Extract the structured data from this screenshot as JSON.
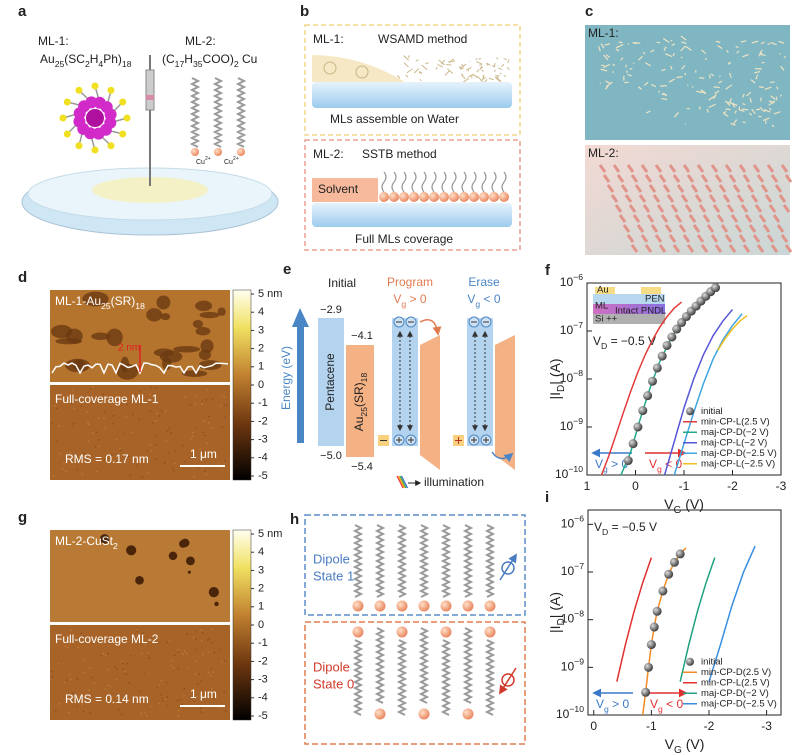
{
  "panels": {
    "a": {
      "label": "a",
      "ml1": "ML-1:",
      "ml1_formula": "Au25(SC2H4Ph)18",
      "ml2": "ML-2:",
      "ml2_formula": "(C17H35COO)2 Cu",
      "ions": [
        "Cu2+",
        "Cu2+"
      ]
    },
    "b": {
      "label": "b",
      "ml1": "ML-1:",
      "method1": "WSAMD method",
      "caption1": "MLs assemble on Water",
      "ml2": "ML-2:",
      "method2": "SSTB method",
      "solvent": "Solvent",
      "caption2": "Full MLs coverage"
    },
    "c": {
      "label": "c",
      "ml1": "ML-1:",
      "ml2": "ML-2:"
    },
    "d": {
      "label": "d",
      "top": "ML-1-Au25(SR)18",
      "height": "2 nm",
      "bottom": "Full-coverage ML-1",
      "rms": "RMS = 0.17 nm",
      "scale_bar": "1 μm",
      "colorbar_ticks": [
        {
          "value": 5,
          "label": "5 nm"
        },
        4,
        3,
        2,
        1,
        0,
        -1,
        -2,
        -3,
        -4,
        -5
      ]
    },
    "e": {
      "label": "e",
      "initial": "Initial",
      "program": "Program",
      "program_bias": "Vg > 0",
      "erase": "Erase",
      "erase_bias": "Vg < 0",
      "energy_axis": "Energy (eV)",
      "pentacene_lumo": "−2.9",
      "au_lumo": "−4.1",
      "pentacene": "Pentacene",
      "au": "Au25(SR)18",
      "pentacene_homo": "−5.0",
      "au_homo": "−5.4",
      "illumination": "illumination"
    },
    "g": {
      "label": "g",
      "top": "ML-2-CuSt2",
      "bottom": "Full-coverage ML-2",
      "rms": "RMS = 0.14 nm",
      "scale_bar": "1 μm",
      "colorbar_ticks": [
        {
          "value": 5,
          "label": "5 nm"
        },
        4,
        3,
        2,
        1,
        0,
        -1,
        -2,
        -3,
        -4,
        -5
      ]
    },
    "h": {
      "label": "h",
      "state1": [
        "Dipole",
        "State 1"
      ],
      "state0": [
        "Dipole",
        "State 0"
      ]
    }
  },
  "chart_data": [
    {
      "type": "line",
      "label": "f",
      "xlabel": "VG (V)",
      "ylabel": "|ID| (A)",
      "log_y": true,
      "xlim": [
        1,
        -3
      ],
      "xticks": [
        1,
        0,
        -1,
        -2,
        -3
      ],
      "ylim": [
        1e-10,
        1e-06
      ],
      "yticks": [
        {
          "value": 1e-10,
          "label": "10−10"
        },
        {
          "value": 1e-09,
          "label": "10−9"
        },
        {
          "value": 1e-08,
          "label": "10−8"
        },
        {
          "value": 1e-07,
          "label": "10−7"
        },
        {
          "value": 1e-06,
          "label": "10−6"
        }
      ],
      "legend": "lower right",
      "annotations": {
        "vd": "VD = −0.5 V",
        "vg_pos": "Vg > 0",
        "vg_neg": "Vg < 0"
      },
      "inset": {
        "au": "Au",
        "pen": "PEN",
        "ml": "ML",
        "pndl": "Intact PNDL",
        "si": "Si ++"
      },
      "series": [
        {
          "name": "initial",
          "color": "#555555",
          "marker": true,
          "x": [
            0.15,
            0.05,
            -0.05,
            -0.15,
            -0.25,
            -0.35,
            -0.45,
            -0.55,
            -0.65,
            -0.75,
            -0.85,
            -0.95,
            -1.05,
            -1.15,
            -1.25,
            -1.35,
            -1.45,
            -1.55,
            -1.65
          ],
          "values": [
            2e-10,
            4.5e-10,
            1e-09,
            2.2e-09,
            4.5e-09,
            9e-09,
            1.7e-08,
            3e-08,
            5e-08,
            7.5e-08,
            1.1e-07,
            1.5e-07,
            2e-07,
            2.6e-07,
            3.3e-07,
            4.2e-07,
            5.3e-07,
            6.6e-07,
            8e-07
          ]
        },
        {
          "name": "min-CP-L(2.5 V)",
          "color": "#e33b3b",
          "x": [
            0.7,
            0.55,
            0.4,
            0.25,
            0.1,
            -0.05,
            -0.2,
            -0.35,
            -0.5,
            -0.65,
            -0.8,
            -0.95
          ],
          "values": [
            1e-10,
            2.5e-10,
            7e-10,
            2e-09,
            5.5e-09,
            1.4e-08,
            3.2e-08,
            6.5e-08,
            1.2e-07,
            2e-07,
            3e-07,
            4e-07
          ]
        },
        {
          "name": "maj-CP-D(−2 V)",
          "color": "#1fa88a",
          "x": [
            0.3,
            0.1,
            -0.1,
            -0.3,
            -0.5,
            -0.7,
            -0.9,
            -1.1,
            -1.3,
            -1.5,
            -1.7
          ],
          "values": [
            1e-10,
            3e-10,
            1.5e-09,
            6.5e-09,
            2.3e-08,
            6e-08,
            1.3e-07,
            2.3e-07,
            3.8e-07,
            5.8e-07,
            8.5e-07
          ]
        },
        {
          "name": "maj-CP-L(−2 V)",
          "color": "#5656d6",
          "x": [
            -0.6,
            -0.8,
            -1.0,
            -1.2,
            -1.4,
            -1.6,
            -1.8,
            -2.0
          ],
          "values": [
            1e-10,
            5e-10,
            2.5e-09,
            1e-08,
            3.2e-08,
            8e-08,
            1.6e-07,
            2.8e-07
          ]
        },
        {
          "name": "maj-CP-D(−2.5 V)",
          "color": "#3fa4e0",
          "x": [
            -0.8,
            -1.0,
            -1.2,
            -1.4,
            -1.6,
            -1.8,
            -2.0,
            -2.2
          ],
          "values": [
            1e-10,
            4.5e-10,
            2e-09,
            8e-09,
            2.6e-08,
            6.5e-08,
            1.3e-07,
            2.3e-07
          ]
        },
        {
          "name": "maj-CP-L(−2.5 V)",
          "color": "#f0c020",
          "x": [
            -1.7,
            -1.85,
            -2.0,
            -2.15,
            -2.3
          ],
          "values": [
            4e-08,
            7e-08,
            1.1e-07,
            1.6e-07,
            2.1e-07
          ]
        }
      ]
    },
    {
      "type": "line",
      "label": "i",
      "xlabel": "VG (V)",
      "ylabel": "|ID| (A)",
      "log_y": true,
      "xlim": [
        0.1,
        -3.25
      ],
      "xticks": [
        0,
        -1,
        -2,
        -3
      ],
      "ylim": [
        1e-10,
        2e-06
      ],
      "yticks": [
        {
          "value": 1e-10,
          "label": "10−10"
        },
        {
          "value": 1e-09,
          "label": "10−9"
        },
        {
          "value": 1e-08,
          "label": "10−8"
        },
        {
          "value": 1e-07,
          "label": "10−7"
        },
        {
          "value": 1e-06,
          "label": "10−6"
        }
      ],
      "legend": "lower right",
      "annotations": {
        "vd": "VD = −0.5 V",
        "vg_pos": "Vg > 0",
        "vg_neg": "Vg < 0"
      },
      "series": [
        {
          "name": "initial",
          "color": "#555555",
          "marker": true,
          "x": [
            -0.9,
            -0.95,
            -1.0,
            -1.05,
            -1.1,
            -1.2,
            -1.3,
            -1.4,
            -1.5
          ],
          "values": [
            3e-10,
            1e-09,
            3e-09,
            7e-09,
            1.5e-08,
            4e-08,
            9e-08,
            1.6e-07,
            2.4e-07
          ]
        },
        {
          "name": "min-CP-D(2.5 V)",
          "color": "#f08a24",
          "x": [
            -0.85,
            -0.9,
            -0.95,
            -1.0,
            -1.05,
            -1.1,
            -1.2,
            -1.3,
            -1.4,
            -1.5,
            -1.6
          ],
          "values": [
            1e-10,
            3e-10,
            1e-09,
            3e-09,
            7e-09,
            1.5e-08,
            4e-08,
            9e-08,
            1.6e-07,
            2.4e-07,
            3.2e-07
          ]
        },
        {
          "name": "min-CP-L(2.5 V)",
          "color": "#e03030",
          "x": [
            -0.4,
            -0.55,
            -0.7,
            -0.85,
            -1.0
          ],
          "values": [
            5e-10,
            3e-09,
            1.5e-08,
            6e-08,
            2e-07
          ]
        },
        {
          "name": "maj-CP-D(−2 V)",
          "color": "#20a080",
          "x": [
            -1.5,
            -1.65,
            -1.8,
            -1.95,
            -2.1
          ],
          "values": [
            5e-10,
            3e-09,
            1.5e-08,
            6e-08,
            2e-07
          ]
        },
        {
          "name": "maj-CP-D(−2.5 V)",
          "color": "#3a8ee0",
          "x": [
            -2.0,
            -2.2,
            -2.4,
            -2.6,
            -2.8
          ],
          "values": [
            5e-10,
            3e-09,
            2e-08,
            1e-07,
            3.5e-07
          ]
        }
      ]
    }
  ]
}
